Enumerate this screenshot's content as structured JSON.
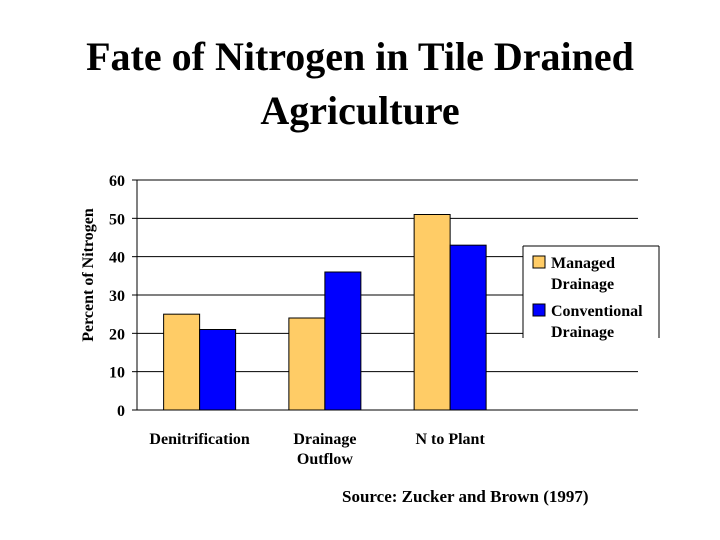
{
  "title": {
    "line1": "Fate of Nitrogen in Tile Drained",
    "line2": "Agriculture"
  },
  "source": "Source: Zucker and Brown (1997)",
  "chart_data": {
    "type": "bar",
    "categories": [
      [
        "Denitrification"
      ],
      [
        "Drainage",
        "Outflow"
      ],
      [
        "N to Plant"
      ],
      [
        ""
      ]
    ],
    "series": [
      {
        "name": [
          "Managed",
          "Drainage"
        ],
        "color": "#FFCC66",
        "values": [
          25,
          24,
          51,
          null
        ]
      },
      {
        "name": [
          "Conventional",
          "Drainage"
        ],
        "color": "#0000FF",
        "values": [
          21,
          36,
          43,
          null
        ]
      }
    ],
    "ylabel": "Percent of Nitrogen",
    "xlabel": "",
    "ylim": [
      0,
      60
    ],
    "yticks": [
      0,
      10,
      20,
      30,
      40,
      50,
      60
    ],
    "grid": true,
    "legend_position": "right"
  }
}
